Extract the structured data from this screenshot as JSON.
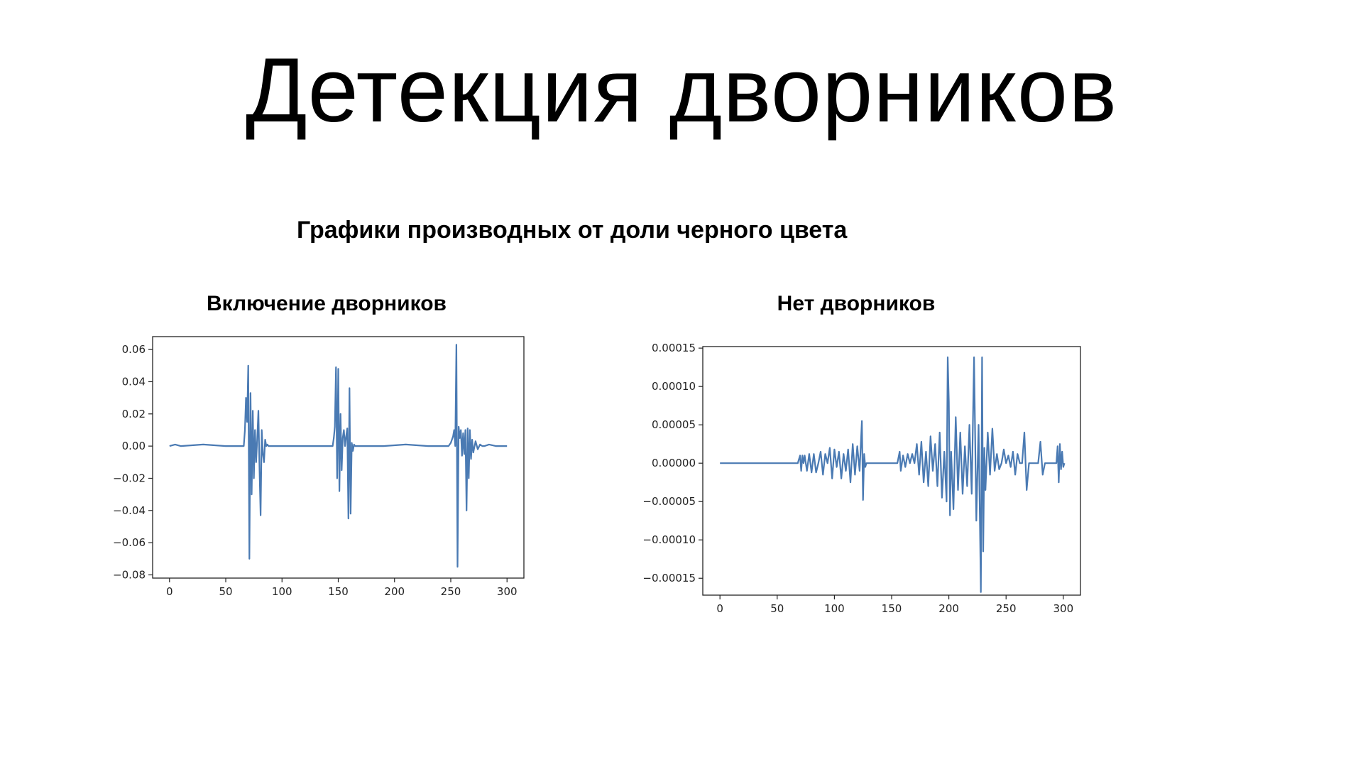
{
  "slide": {
    "title": "Детекция дворников",
    "subtitle": "Графики производных от доли черного цвета"
  },
  "chart_data": [
    {
      "type": "line",
      "title": "Включение дворников",
      "xlabel": "",
      "ylabel": "",
      "xlim": [
        -15,
        315
      ],
      "ylim": [
        -0.082,
        0.068
      ],
      "xticks": [
        0,
        50,
        100,
        150,
        200,
        250,
        300
      ],
      "yticks": [
        0.06,
        0.04,
        0.02,
        0.0,
        -0.02,
        -0.04,
        -0.06,
        -0.08
      ],
      "ytick_labels": [
        "0.06",
        "0.04",
        "0.02",
        "0.00",
        "−0.02",
        "−0.04",
        "−0.06",
        "−0.08"
      ],
      "grid": false,
      "line_color": "#4a7ab3",
      "series": [
        {
          "x": [
            0,
            5,
            10,
            30,
            50,
            66,
            67,
            68,
            69,
            70,
            71,
            72,
            73,
            74,
            75,
            76,
            77,
            78,
            79,
            80,
            81,
            82,
            83,
            84,
            85,
            86,
            87,
            88,
            90,
            95,
            100,
            120,
            140,
            145,
            146,
            147,
            148,
            149,
            150,
            151,
            152,
            153,
            154,
            155,
            156,
            157,
            158,
            159,
            160,
            161,
            162,
            163,
            164,
            165,
            166,
            168,
            170,
            190,
            210,
            230,
            248,
            250,
            252,
            253,
            254,
            255,
            256,
            257,
            258,
            259,
            260,
            261,
            262,
            263,
            264,
            265,
            266,
            267,
            268,
            269,
            270,
            272,
            274,
            276,
            278,
            280,
            284,
            290,
            300
          ],
          "y": [
            0.0,
            0.001,
            0.0,
            0.001,
            0.0,
            0.0,
            0.01,
            0.03,
            0.015,
            0.05,
            -0.07,
            0.033,
            -0.03,
            0.022,
            -0.02,
            0.01,
            -0.01,
            0.005,
            0.022,
            -0.015,
            -0.043,
            0.01,
            -0.005,
            -0.01,
            0.004,
            0.0,
            0.001,
            0.0,
            0.0,
            0.0,
            0.0,
            0.0,
            0.0,
            0.0,
            0.005,
            0.012,
            0.049,
            -0.02,
            0.048,
            -0.028,
            0.02,
            -0.015,
            0.005,
            0.01,
            0.0,
            0.006,
            0.011,
            -0.045,
            0.036,
            -0.042,
            0.002,
            -0.003,
            0.001,
            0.0,
            0.0,
            0.0,
            0.0,
            0.0,
            0.001,
            0.0,
            0.0,
            0.002,
            0.006,
            0.01,
            0.0,
            0.063,
            -0.075,
            0.012,
            0.005,
            0.01,
            -0.006,
            0.008,
            -0.005,
            0.01,
            -0.04,
            0.011,
            -0.02,
            0.01,
            -0.008,
            0.004,
            -0.004,
            0.003,
            -0.002,
            0.001,
            0.0,
            0.0,
            0.001,
            0.0,
            0.0
          ]
        }
      ]
    },
    {
      "type": "line",
      "title": "Нет дворников",
      "xlabel": "",
      "ylabel": "",
      "xlim": [
        -15,
        315
      ],
      "ylim": [
        -0.000172,
        0.000152
      ],
      "xticks": [
        0,
        50,
        100,
        150,
        200,
        250,
        300
      ],
      "yticks": [
        0.00015,
        0.0001,
        5e-05,
        0.0,
        -5e-05,
        -0.0001,
        -0.00015
      ],
      "ytick_labels": [
        "0.00015",
        "0.00010",
        "0.00005",
        "0.00000",
        "−0.00005",
        "−0.00010",
        "−0.00015"
      ],
      "grid": false,
      "line_color": "#4a7ab3",
      "series": [
        {
          "x": [
            0,
            40,
            68,
            70,
            71,
            72,
            73,
            74,
            76,
            78,
            80,
            82,
            84,
            86,
            88,
            90,
            92,
            94,
            96,
            98,
            100,
            102,
            104,
            106,
            108,
            110,
            112,
            114,
            116,
            118,
            120,
            122,
            124,
            125,
            126,
            127,
            128,
            130,
            140,
            150,
            155,
            157,
            158,
            160,
            162,
            164,
            166,
            168,
            170,
            172,
            174,
            176,
            178,
            180,
            182,
            184,
            186,
            188,
            190,
            192,
            194,
            196,
            198,
            199,
            200,
            201,
            202,
            204,
            206,
            208,
            210,
            212,
            214,
            216,
            218,
            220,
            222,
            224,
            226,
            228,
            229,
            230,
            231,
            232,
            234,
            236,
            238,
            240,
            242,
            244,
            246,
            248,
            250,
            252,
            254,
            256,
            258,
            260,
            262,
            264,
            266,
            268,
            270,
            272,
            274,
            276,
            278,
            280,
            282,
            284,
            286,
            288,
            290,
            292,
            294,
            295,
            296,
            297,
            298,
            299,
            300,
            301
          ],
          "y": [
            0.0,
            0.0,
            0.0,
            1e-05,
            -1e-05,
            1e-05,
            0.0,
            1e-05,
            -1e-05,
            1.2e-05,
            -1.2e-05,
            1.2e-05,
            -1.2e-05,
            0.0,
            1.5e-05,
            -1.5e-05,
            1.2e-05,
            0.0,
            2e-05,
            -2e-05,
            1.8e-05,
            -5e-06,
            1.5e-05,
            -2e-05,
            1.2e-05,
            -1e-05,
            1.8e-05,
            -2.5e-05,
            2.5e-05,
            -1.5e-05,
            2.2e-05,
            -1e-05,
            5.5e-05,
            -4.8e-05,
            1.2e-05,
            -5e-06,
            0.0,
            0.0,
            0.0,
            0.0,
            0.0,
            1.5e-05,
            -1e-05,
            1e-05,
            -5e-06,
            1.2e-05,
            0.0,
            1.2e-05,
            0.0,
            2.5e-05,
            -1.5e-05,
            2.8e-05,
            -2.5e-05,
            1.5e-05,
            -3e-05,
            3.5e-05,
            -1e-05,
            2.5e-05,
            -3e-05,
            4e-05,
            -4.5e-05,
            1.5e-05,
            -5e-05,
            0.000138,
            8e-05,
            -6.8e-05,
            1.5e-05,
            -6e-05,
            6e-05,
            -3.5e-05,
            4e-05,
            -4e-05,
            2.2e-05,
            -3e-05,
            5e-05,
            -4e-05,
            0.000138,
            -7.5e-05,
            5e-05,
            -0.000168,
            0.000138,
            -0.000115,
            2e-05,
            -3.5e-05,
            4e-05,
            -1.5e-05,
            4.5e-05,
            -1e-05,
            1.2e-05,
            -8e-06,
            0.0,
            1.8e-05,
            0.0,
            1e-05,
            -5e-06,
            1.5e-05,
            -1.5e-05,
            1.2e-05,
            0.0,
            0.0,
            4e-05,
            -3.5e-05,
            0.0,
            0.0,
            0.0,
            0.0,
            0.0,
            2.8e-05,
            -1.5e-05,
            0.0,
            0.0,
            0.0,
            0.0,
            0.0,
            0.0,
            2.2e-05,
            -2.5e-05,
            2.5e-05,
            -8e-06,
            1.5e-05,
            -5e-06,
            0.0
          ]
        }
      ]
    }
  ]
}
